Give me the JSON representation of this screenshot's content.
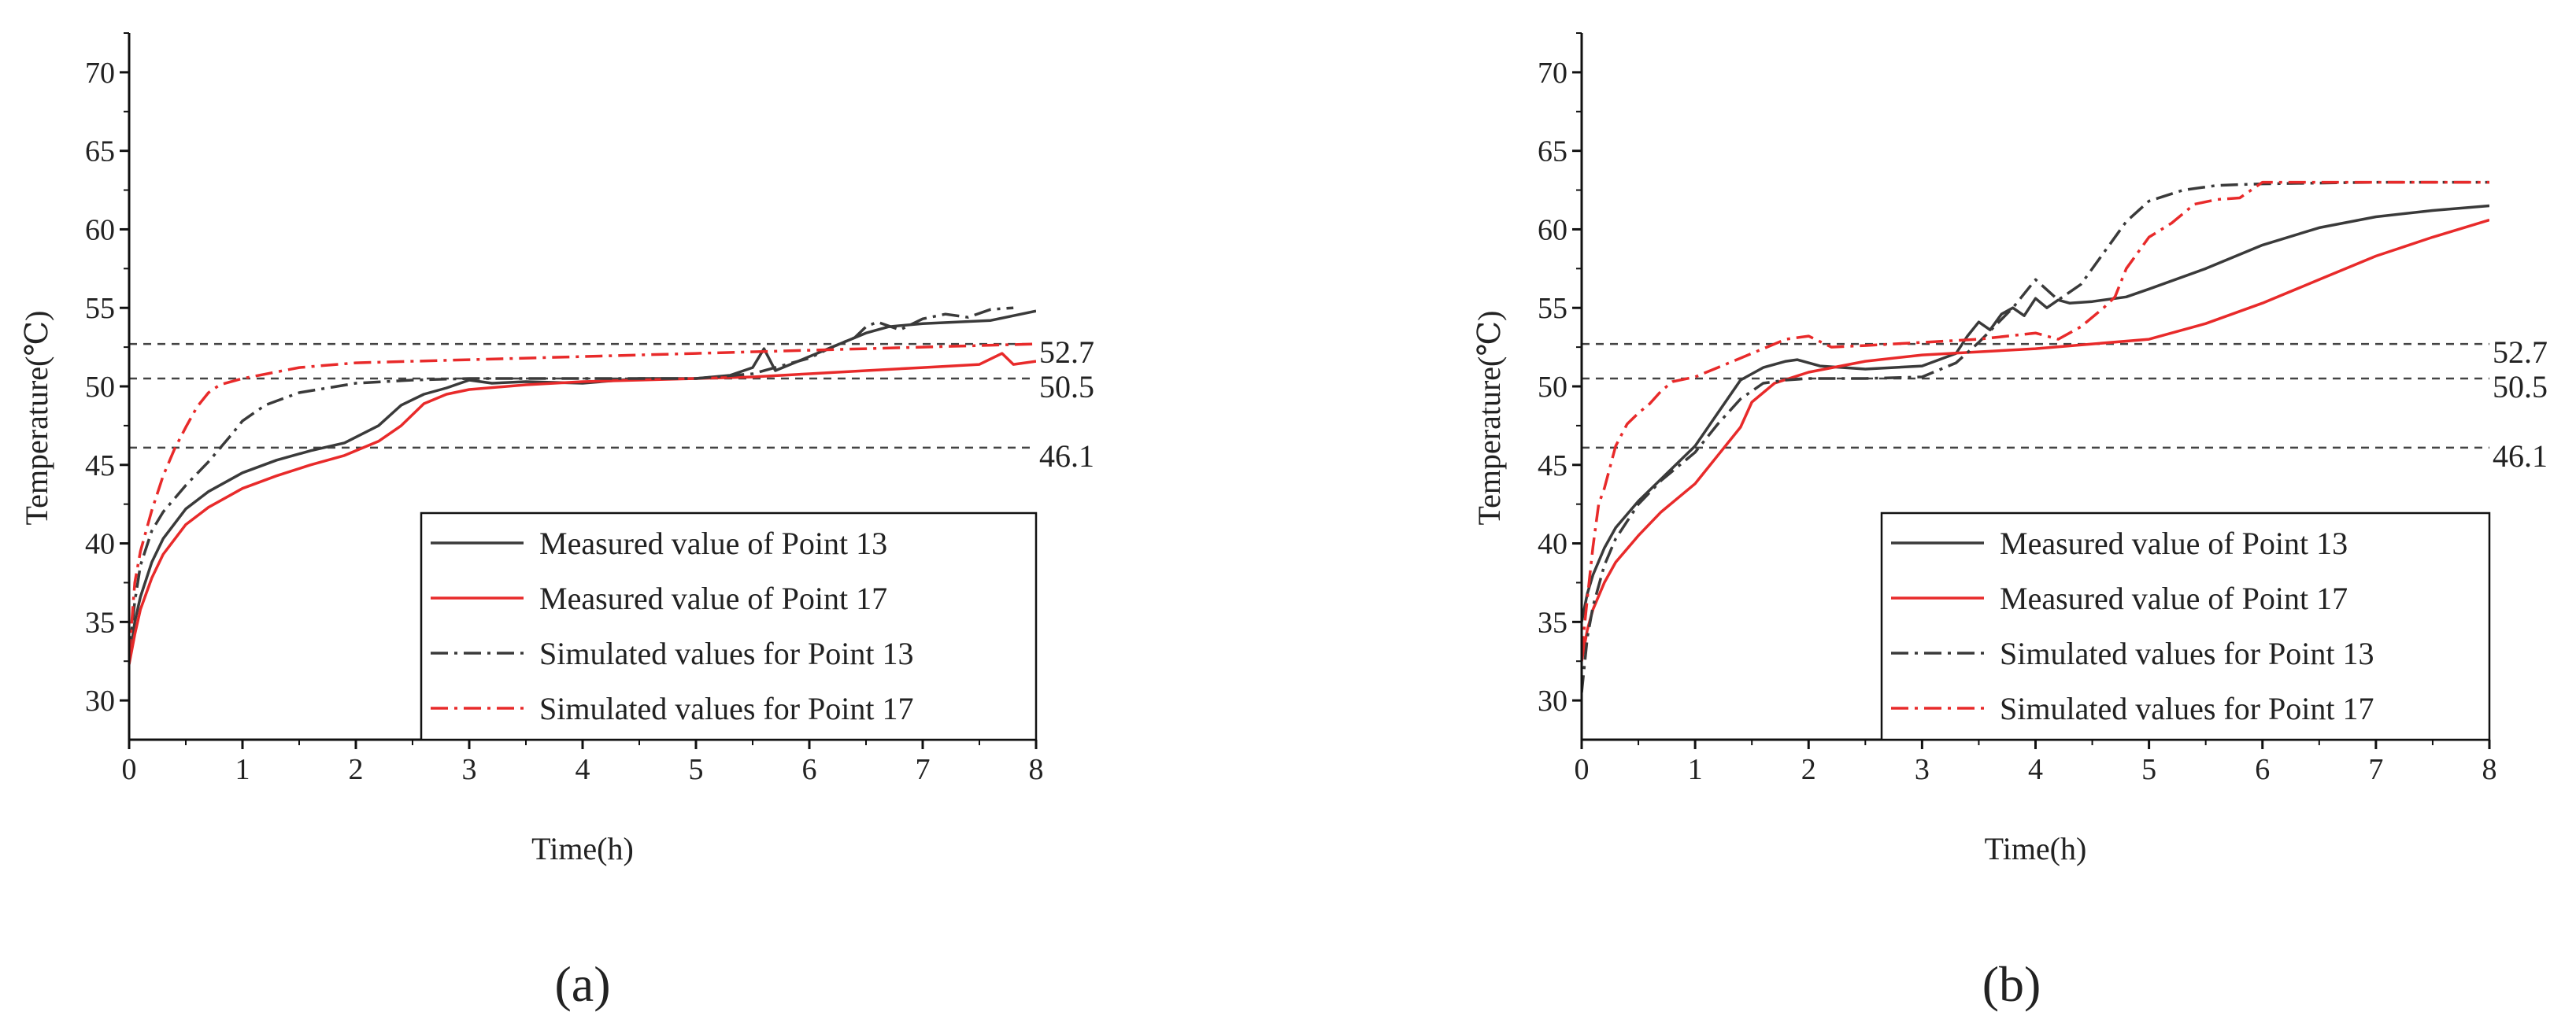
{
  "chart_data": [
    {
      "type": "line",
      "panel_label": "(a)",
      "xlabel": "Time(h)",
      "ylabel": "Temperature(℃)",
      "xlim": [
        0,
        8
      ],
      "ylim": [
        27.5,
        72.5
      ],
      "xticks": [
        "0",
        "1",
        "2",
        "3",
        "4",
        "5",
        "6",
        "7",
        "8"
      ],
      "yticks": [
        "30",
        "35",
        "40",
        "45",
        "50",
        "55",
        "60",
        "65",
        "70"
      ],
      "grid": false,
      "legend_position": "bottom-right",
      "reference_lines": [
        {
          "y": 52.7,
          "label": "52.7"
        },
        {
          "y": 50.5,
          "label": "50.5"
        },
        {
          "y": 46.1,
          "label": "46.1"
        }
      ],
      "series": [
        {
          "name": "Measured value of Point 13",
          "color": "#3a3a3a",
          "style": "solid",
          "x": [
            0,
            0.05,
            0.1,
            0.2,
            0.3,
            0.5,
            0.7,
            1.0,
            1.3,
            1.6,
            1.9,
            2.2,
            2.4,
            2.6,
            2.8,
            3.0,
            3.2,
            3.5,
            4.0,
            4.5,
            5.0,
            5.3,
            5.5,
            5.6,
            5.7,
            5.9,
            6.1,
            6.3,
            6.5,
            6.7,
            7.0,
            7.3,
            7.6,
            7.8,
            8.0
          ],
          "y": [
            32.5,
            35.0,
            36.6,
            38.8,
            40.3,
            42.2,
            43.3,
            44.5,
            45.3,
            45.9,
            46.4,
            47.5,
            48.8,
            49.5,
            49.9,
            50.4,
            50.2,
            50.3,
            50.2,
            50.5,
            50.5,
            50.7,
            51.2,
            52.4,
            51.0,
            51.6,
            52.2,
            52.8,
            53.4,
            53.8,
            54.0,
            54.1,
            54.2,
            54.5,
            54.8
          ]
        },
        {
          "name": "Measured value of Point 17",
          "color": "#e82a2a",
          "style": "solid",
          "x": [
            0,
            0.05,
            0.1,
            0.2,
            0.3,
            0.5,
            0.7,
            1.0,
            1.3,
            1.6,
            1.9,
            2.2,
            2.4,
            2.6,
            2.8,
            3.0,
            3.5,
            4.0,
            4.5,
            5.0,
            5.5,
            6.0,
            6.5,
            7.0,
            7.5,
            7.7,
            7.8,
            8.0
          ],
          "y": [
            32.3,
            34.2,
            35.8,
            37.8,
            39.3,
            41.2,
            42.3,
            43.5,
            44.3,
            45.0,
            45.6,
            46.5,
            47.5,
            48.9,
            49.5,
            49.8,
            50.1,
            50.3,
            50.4,
            50.5,
            50.6,
            50.8,
            51.0,
            51.2,
            51.4,
            52.1,
            51.4,
            51.6
          ]
        },
        {
          "name": "Simulated values for Point 13",
          "color": "#3a3a3a",
          "style": "dashdot",
          "x": [
            0,
            0.05,
            0.1,
            0.2,
            0.3,
            0.5,
            0.7,
            0.9,
            1.0,
            1.2,
            1.5,
            2.0,
            2.5,
            3.0,
            4.0,
            5.0,
            5.5,
            6.0,
            6.2,
            6.4,
            6.5,
            6.6,
            6.8,
            7.0,
            7.2,
            7.4,
            7.6,
            7.8
          ],
          "y": [
            33.0,
            36.3,
            38.6,
            40.8,
            42.0,
            43.7,
            45.2,
            46.9,
            47.8,
            48.8,
            49.6,
            50.2,
            50.4,
            50.5,
            50.5,
            50.5,
            50.8,
            51.8,
            52.5,
            53.1,
            53.8,
            54.1,
            53.6,
            54.3,
            54.6,
            54.4,
            54.9,
            55.0
          ]
        },
        {
          "name": "Simulated values for Point 17",
          "color": "#e82a2a",
          "style": "dashdot",
          "x": [
            0,
            0.05,
            0.1,
            0.2,
            0.3,
            0.4,
            0.5,
            0.6,
            0.7,
            0.8,
            1.0,
            1.5,
            2.0,
            3.0,
            4.0,
            5.0,
            6.0,
            7.0,
            8.0
          ],
          "y": [
            32.8,
            37.5,
            39.5,
            42.1,
            44.3,
            46.0,
            47.4,
            48.7,
            49.6,
            50.1,
            50.5,
            51.2,
            51.5,
            51.7,
            51.9,
            52.1,
            52.3,
            52.5,
            52.7
          ]
        }
      ]
    },
    {
      "type": "line",
      "panel_label": "(b)",
      "xlabel": "Time(h)",
      "ylabel": "Temperature(℃)",
      "xlim": [
        0,
        8
      ],
      "ylim": [
        27.5,
        72.5
      ],
      "xticks": [
        "0",
        "1",
        "2",
        "3",
        "4",
        "5",
        "6",
        "7",
        "8"
      ],
      "yticks": [
        "30",
        "35",
        "40",
        "45",
        "50",
        "55",
        "60",
        "65",
        "70"
      ],
      "grid": false,
      "legend_position": "bottom-right",
      "reference_lines": [
        {
          "y": 52.7,
          "label": "52.7"
        },
        {
          "y": 50.5,
          "label": "50.5"
        },
        {
          "y": 46.1,
          "label": "46.1"
        }
      ],
      "series": [
        {
          "name": "Measured value of Point 13",
          "color": "#3a3a3a",
          "style": "solid",
          "x": [
            0,
            0.05,
            0.1,
            0.2,
            0.3,
            0.5,
            0.7,
            1.0,
            1.2,
            1.4,
            1.6,
            1.8,
            1.9,
            2.1,
            2.5,
            3.0,
            3.3,
            3.4,
            3.5,
            3.6,
            3.7,
            3.8,
            3.9,
            4.0,
            4.1,
            4.2,
            4.3,
            4.5,
            4.8,
            5.0,
            5.5,
            6.0,
            6.5,
            7.0,
            7.5,
            8.0
          ],
          "y": [
            35.0,
            36.8,
            38.0,
            39.7,
            41.0,
            42.7,
            44.1,
            46.2,
            48.3,
            50.4,
            51.2,
            51.6,
            51.7,
            51.3,
            51.1,
            51.3,
            52.1,
            53.2,
            54.1,
            53.6,
            54.6,
            55.0,
            54.5,
            55.6,
            55.0,
            55.5,
            55.3,
            55.4,
            55.7,
            56.2,
            57.5,
            59.0,
            60.1,
            60.8,
            61.2,
            61.5
          ]
        },
        {
          "name": "Measured value of Point 17",
          "color": "#e82a2a",
          "style": "solid",
          "x": [
            0,
            0.05,
            0.1,
            0.2,
            0.3,
            0.5,
            0.7,
            1.0,
            1.2,
            1.4,
            1.5,
            1.7,
            2.0,
            2.5,
            3.0,
            3.5,
            4.0,
            4.5,
            5.0,
            5.5,
            6.0,
            6.5,
            7.0,
            7.5,
            8.0
          ],
          "y": [
            32.5,
            34.5,
            35.8,
            37.5,
            38.8,
            40.5,
            42.0,
            43.8,
            45.6,
            47.4,
            49.0,
            50.2,
            50.9,
            51.6,
            52.0,
            52.2,
            52.4,
            52.7,
            53.0,
            54.0,
            55.3,
            56.8,
            58.3,
            59.5,
            60.6
          ]
        },
        {
          "name": "Simulated values for Point 13",
          "color": "#3a3a3a",
          "style": "dashdot",
          "x": [
            0,
            0.05,
            0.1,
            0.2,
            0.3,
            0.5,
            0.7,
            1.0,
            1.2,
            1.4,
            1.6,
            1.8,
            2.0,
            2.5,
            3.0,
            3.3,
            3.5,
            3.8,
            4.0,
            4.2,
            4.4,
            4.6,
            4.8,
            5.0,
            5.3,
            5.6,
            6.0,
            7.0,
            8.0
          ],
          "y": [
            30.5,
            34.0,
            36.0,
            38.6,
            40.3,
            42.5,
            44.0,
            45.8,
            47.6,
            49.2,
            50.2,
            50.4,
            50.5,
            50.5,
            50.6,
            51.5,
            52.8,
            55.0,
            56.8,
            55.5,
            56.5,
            58.5,
            60.5,
            61.8,
            62.5,
            62.8,
            62.9,
            63.0,
            63.0
          ]
        },
        {
          "name": "Simulated values for Point 17",
          "color": "#e82a2a",
          "style": "dashdot",
          "x": [
            0,
            0.05,
            0.1,
            0.15,
            0.2,
            0.3,
            0.4,
            0.5,
            0.6,
            0.7,
            0.8,
            1.0,
            1.2,
            1.4,
            1.6,
            1.8,
            2.0,
            2.2,
            2.5,
            3.0,
            3.5,
            4.0,
            4.2,
            4.4,
            4.6,
            4.7,
            4.8,
            5.0,
            5.2,
            5.4,
            5.6,
            5.8,
            6.0,
            7.0,
            8.0
          ],
          "y": [
            33.0,
            36.5,
            39.8,
            42.5,
            43.5,
            46.2,
            47.6,
            48.3,
            48.9,
            49.7,
            50.3,
            50.6,
            51.2,
            51.8,
            52.4,
            53.0,
            53.2,
            52.5,
            52.6,
            52.8,
            53.0,
            53.4,
            53.0,
            53.8,
            55.0,
            55.7,
            57.5,
            59.5,
            60.4,
            61.6,
            61.9,
            62.0,
            63.0,
            63.0,
            63.0
          ]
        }
      ]
    }
  ]
}
